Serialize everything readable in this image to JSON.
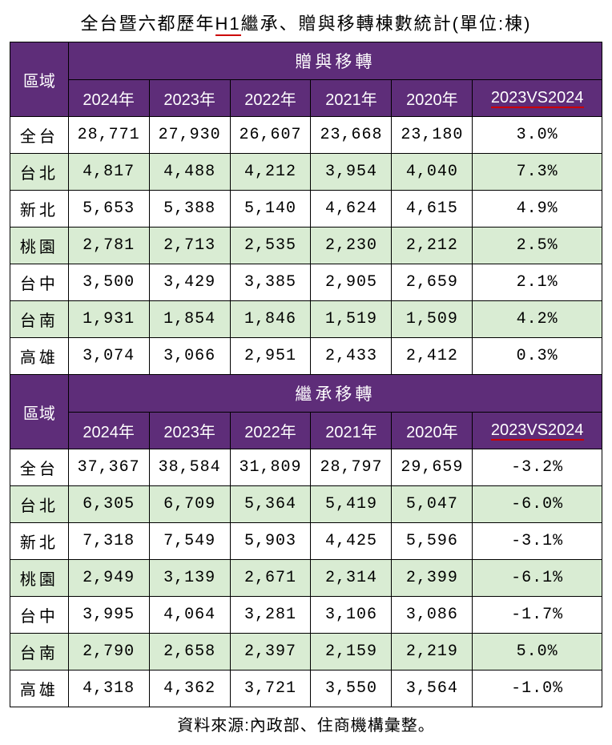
{
  "title_pre": "全台暨六都歷年",
  "title_underlined": "H1",
  "title_post": "繼承、贈與移轉棟數統計(單位:棟)",
  "region_header": "區域",
  "compare_header": "2023VS2024",
  "source": "資料來源:內政部、住商機構彙整。",
  "years": [
    "2024年",
    "2023年",
    "2022年",
    "2021年",
    "2020年"
  ],
  "sections": [
    {
      "name": "贈與移轉",
      "rows": [
        {
          "region": "全台",
          "vals": [
            "28,771",
            "27,930",
            "26,607",
            "23,668",
            "23,180"
          ],
          "cmp": "3.0%",
          "shade": "odd"
        },
        {
          "region": "台北",
          "vals": [
            "4,817",
            "4,488",
            "4,212",
            "3,954",
            "4,040"
          ],
          "cmp": "7.3%",
          "shade": "even"
        },
        {
          "region": "新北",
          "vals": [
            "5,653",
            "5,388",
            "5,140",
            "4,624",
            "4,615"
          ],
          "cmp": "4.9%",
          "shade": "odd"
        },
        {
          "region": "桃園",
          "vals": [
            "2,781",
            "2,713",
            "2,535",
            "2,230",
            "2,212"
          ],
          "cmp": "2.5%",
          "shade": "even"
        },
        {
          "region": "台中",
          "vals": [
            "3,500",
            "3,429",
            "3,385",
            "2,905",
            "2,659"
          ],
          "cmp": "2.1%",
          "shade": "odd"
        },
        {
          "region": "台南",
          "vals": [
            "1,931",
            "1,854",
            "1,846",
            "1,519",
            "1,509"
          ],
          "cmp": "4.2%",
          "shade": "even"
        },
        {
          "region": "高雄",
          "vals": [
            "3,074",
            "3,066",
            "2,951",
            "2,433",
            "2,412"
          ],
          "cmp": "0.3%",
          "shade": "odd"
        }
      ]
    },
    {
      "name": "繼承移轉",
      "rows": [
        {
          "region": "全台",
          "vals": [
            "37,367",
            "38,584",
            "31,809",
            "28,797",
            "29,659"
          ],
          "cmp": "-3.2%",
          "shade": "odd"
        },
        {
          "region": "台北",
          "vals": [
            "6,305",
            "6,709",
            "5,364",
            "5,419",
            "5,047"
          ],
          "cmp": "-6.0%",
          "shade": "even"
        },
        {
          "region": "新北",
          "vals": [
            "7,318",
            "7,549",
            "5,903",
            "4,425",
            "5,596"
          ],
          "cmp": "-3.1%",
          "shade": "odd"
        },
        {
          "region": "桃園",
          "vals": [
            "2,949",
            "3,139",
            "2,671",
            "2,314",
            "2,399"
          ],
          "cmp": "-6.1%",
          "shade": "even"
        },
        {
          "region": "台中",
          "vals": [
            "3,995",
            "4,064",
            "3,281",
            "3,106",
            "3,086"
          ],
          "cmp": "-1.7%",
          "shade": "odd"
        },
        {
          "region": "台南",
          "vals": [
            "2,790",
            "2,658",
            "2,397",
            "2,159",
            "2,219"
          ],
          "cmp": "5.0%",
          "shade": "even"
        },
        {
          "region": "高雄",
          "vals": [
            "4,318",
            "4,362",
            "3,721",
            "3,550",
            "3,564"
          ],
          "cmp": "-1.0%",
          "shade": "odd"
        }
      ]
    }
  ],
  "colors": {
    "header_bg": "#5e2d79",
    "header_fg": "#ffffff",
    "even_row_bg": "#d9ecd3",
    "odd_row_bg": "#ffffff",
    "underline": "#c00000",
    "border": "#000000"
  }
}
